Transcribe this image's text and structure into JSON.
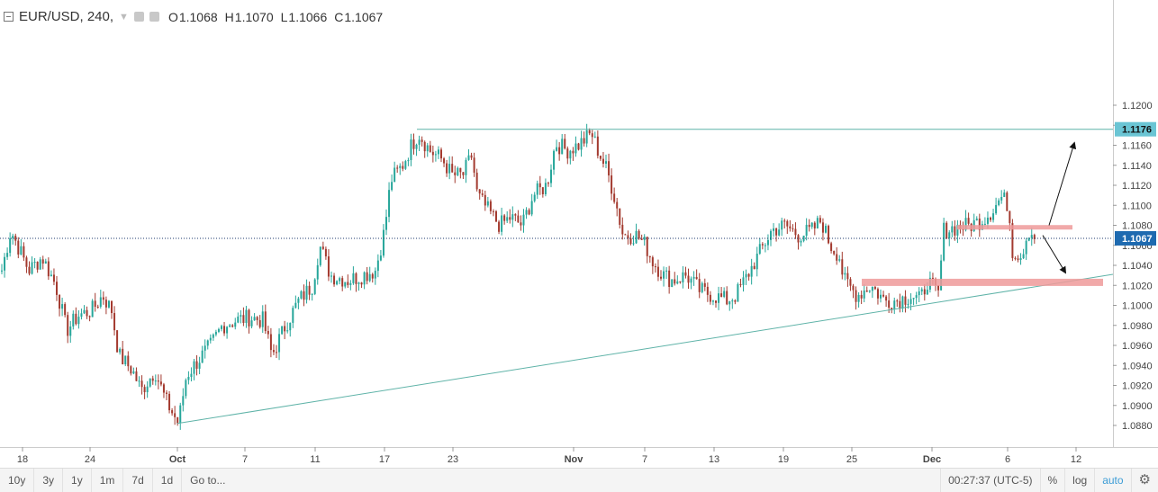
{
  "header": {
    "symbol": "EUR/USD, 240,",
    "ohlc": [
      {
        "label": "O",
        "value": "1.1068"
      },
      {
        "label": "H",
        "value": "1.1070"
      },
      {
        "label": "L",
        "value": "1.1066"
      },
      {
        "label": "C",
        "value": "1.1067"
      }
    ]
  },
  "colors": {
    "up": "#26a69a",
    "down": "#a33a2f",
    "trend": "#5fb3a8",
    "zone": "#ef9a9a",
    "price_tag": "#1e6ab0",
    "level_tag": "#6ac5d4"
  },
  "chart_data": {
    "type": "candlestick",
    "ylim": [
      1.087,
      1.121
    ],
    "y_ticks": [
      "1.0880",
      "1.0900",
      "1.0920",
      "1.0940",
      "1.0960",
      "1.0980",
      "1.1000",
      "1.1020",
      "1.1040",
      "1.1060",
      "1.1080",
      "1.1100",
      "1.1120",
      "1.1140",
      "1.1160",
      "1.1180",
      "1.1200"
    ],
    "x_ticks": [
      "18",
      "24",
      "Oct",
      "7",
      "11",
      "17",
      "23",
      "Nov",
      "7",
      "13",
      "19",
      "25",
      "Dec",
      "6",
      "12"
    ],
    "grid": false,
    "current_price": "1.1067",
    "resistance_level": "1.1176",
    "anchors": [
      [
        0,
        1.1035
      ],
      [
        10,
        1.1075
      ],
      [
        20,
        1.1055
      ],
      [
        30,
        1.1035
      ],
      [
        45,
        1.1048
      ],
      [
        60,
        1.102
      ],
      [
        72,
        1.0975
      ],
      [
        85,
        1.099
      ],
      [
        100,
        1.0995
      ],
      [
        112,
        1.101
      ],
      [
        122,
        1.0995
      ],
      [
        130,
        1.095
      ],
      [
        145,
        1.0935
      ],
      [
        155,
        1.0915
      ],
      [
        170,
        1.0935
      ],
      [
        182,
        1.0905
      ],
      [
        196,
        1.0882
      ],
      [
        205,
        1.093
      ],
      [
        218,
        1.0945
      ],
      [
        232,
        1.096
      ],
      [
        245,
        1.098
      ],
      [
        260,
        1.0985
      ],
      [
        275,
        1.0988
      ],
      [
        290,
        1.0985
      ],
      [
        300,
        1.095
      ],
      [
        315,
        1.098
      ],
      [
        330,
        1.1005
      ],
      [
        345,
        1.102
      ],
      [
        353,
        1.106
      ],
      [
        365,
        1.103
      ],
      [
        385,
        1.1025
      ],
      [
        400,
        1.103
      ],
      [
        415,
        1.1035
      ],
      [
        425,
        1.1075
      ],
      [
        432,
        1.1125
      ],
      [
        445,
        1.114
      ],
      [
        455,
        1.116
      ],
      [
        463,
        1.1172
      ],
      [
        475,
        1.1155
      ],
      [
        490,
        1.1145
      ],
      [
        500,
        1.113
      ],
      [
        512,
        1.113
      ],
      [
        522,
        1.115
      ],
      [
        528,
        1.111
      ],
      [
        540,
        1.1095
      ],
      [
        553,
        1.108
      ],
      [
        565,
        1.1088
      ],
      [
        578,
        1.108
      ],
      [
        590,
        1.111
      ],
      [
        605,
        1.112
      ],
      [
        615,
        1.1162
      ],
      [
        628,
        1.1155
      ],
      [
        640,
        1.116
      ],
      [
        655,
        1.1172
      ],
      [
        662,
        1.1155
      ],
      [
        672,
        1.1135
      ],
      [
        680,
        1.111
      ],
      [
        690,
        1.107
      ],
      [
        705,
        1.107
      ],
      [
        715,
        1.106
      ],
      [
        722,
        1.1045
      ],
      [
        735,
        1.103
      ],
      [
        745,
        1.1025
      ],
      [
        760,
        1.103
      ],
      [
        775,
        1.1015
      ],
      [
        790,
        1.101
      ],
      [
        805,
        1.1005
      ],
      [
        815,
        1.101
      ],
      [
        825,
        1.1025
      ],
      [
        840,
        1.105
      ],
      [
        855,
        1.1075
      ],
      [
        870,
        1.108
      ],
      [
        885,
        1.107
      ],
      [
        900,
        1.1075
      ],
      [
        910,
        1.1085
      ],
      [
        920,
        1.106
      ],
      [
        930,
        1.105
      ],
      [
        935,
        1.1025
      ],
      [
        950,
        1.101
      ],
      [
        965,
        1.102
      ],
      [
        980,
        1.1005
      ],
      [
        995,
        1.1005
      ],
      [
        1010,
        1.101
      ],
      [
        1020,
        1.1005
      ],
      [
        1028,
        1.1025
      ],
      [
        1040,
        1.101
      ],
      [
        1046,
        1.1075
      ],
      [
        1060,
        1.1078
      ],
      [
        1075,
        1.108
      ],
      [
        1088,
        1.1085
      ],
      [
        1100,
        1.1095
      ],
      [
        1110,
        1.1108
      ],
      [
        1118,
        1.11
      ],
      [
        1122,
        1.1055
      ],
      [
        1132,
        1.105
      ],
      [
        1140,
        1.1075
      ],
      [
        1150,
        1.1067
      ]
    ],
    "annotations": {
      "resistance_line": {
        "x1": 1.0,
        "y1": 1.1176,
        "x2": 0,
        "y2": 1.1176
      },
      "trendline": {
        "start": [
          "Oct",
          1.0882
        ],
        "end": [
          "Dec 12+",
          1.103
        ]
      },
      "zones": [
        {
          "price": 1.1078,
          "label": ""
        },
        {
          "price": 1.1023,
          "label": ""
        }
      ],
      "arrows": [
        "up",
        "down"
      ]
    }
  },
  "toolbar": {
    "ranges": [
      "10y",
      "3y",
      "1y",
      "1m",
      "7d",
      "1d"
    ],
    "goto": "Go to...",
    "clock": "00:27:37 (UTC-5)",
    "percent": "%",
    "log": "log",
    "auto": "auto"
  }
}
